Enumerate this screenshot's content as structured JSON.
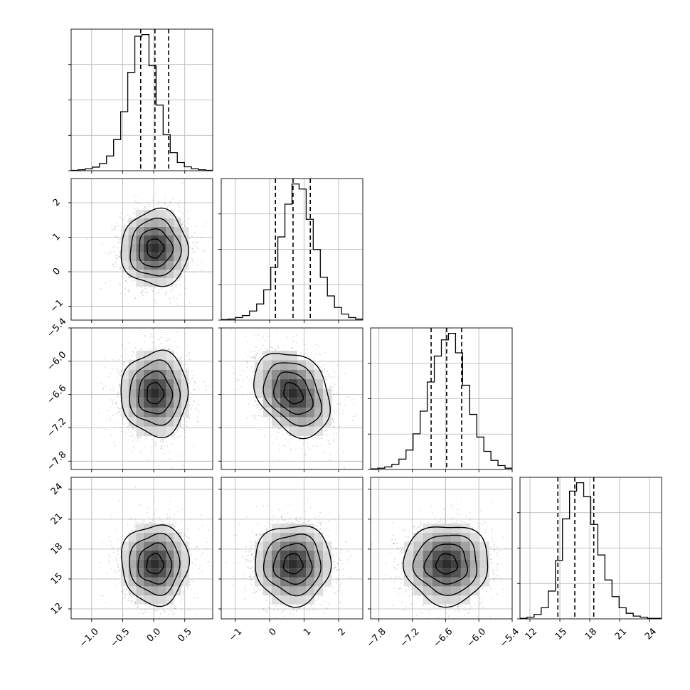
{
  "chart_data": {
    "type": "corner",
    "grid": true,
    "parameters": [
      {
        "ticks": [
          -1.0,
          -0.5,
          0.0,
          0.5
        ],
        "tick_labels": [
          "−1.0",
          "−0.5",
          "0.0",
          "0.5"
        ],
        "range": [
          -1.33,
          0.95
        ],
        "quantiles": [
          -0.21,
          0.02,
          0.24
        ],
        "hist_bins": [
          -1.33,
          0.95,
          20
        ],
        "hist_counts": [
          1,
          3,
          6,
          11,
          22,
          45,
          95,
          180,
          300,
          410,
          415,
          320,
          200,
          110,
          55,
          25,
          12,
          6,
          3,
          1
        ]
      },
      {
        "ticks": [
          -1,
          0,
          1,
          2
        ],
        "tick_labels": [
          "−1",
          "0",
          "1",
          "2"
        ],
        "tick_labels_x": [
          "−1",
          "0",
          "1",
          "2"
        ],
        "range": [
          -1.4,
          2.7
        ],
        "quantiles": [
          0.17,
          0.68,
          1.18
        ],
        "hist_bins": [
          -1.4,
          2.7,
          20
        ],
        "hist_counts": [
          1,
          2,
          5,
          9,
          18,
          32,
          60,
          105,
          165,
          230,
          270,
          260,
          200,
          140,
          85,
          48,
          25,
          12,
          5,
          2
        ]
      },
      {
        "ticks": [
          -7.8,
          -7.2,
          -6.6,
          -6.0,
          -5.4
        ],
        "tick_labels": [
          "−7.8",
          "−7.2",
          "−6.6",
          "−6.0",
          "−5.4"
        ],
        "range": [
          -7.95,
          -5.4
        ],
        "quantiles": [
          -6.86,
          -6.58,
          -6.31
        ],
        "hist_bins": [
          -7.95,
          -5.4,
          20
        ],
        "hist_counts": [
          1,
          2,
          4,
          8,
          16,
          30,
          55,
          90,
          135,
          175,
          200,
          210,
          180,
          130,
          85,
          50,
          28,
          14,
          6,
          2
        ]
      },
      {
        "ticks": [
          12,
          15,
          18,
          21,
          24
        ],
        "tick_labels": [
          "12",
          "15",
          "18",
          "21",
          "24"
        ],
        "range": [
          11.0,
          25.2
        ],
        "quantiles": [
          14.8,
          16.5,
          18.4
        ],
        "hist_bins": [
          11.0,
          25.2,
          20
        ],
        "hist_counts": [
          1,
          3,
          8,
          20,
          50,
          105,
          180,
          230,
          245,
          220,
          170,
          115,
          70,
          40,
          20,
          10,
          5,
          3,
          1,
          1
        ]
      }
    ],
    "correlations": {
      "1_0": 0.0,
      "2_0": 0.0,
      "2_1": -0.3,
      "3_0": 0.0,
      "3_1": 0.0,
      "3_2": 0.0
    },
    "cloud_sigma": [
      0.27,
      0.55,
      0.38,
      2.0
    ]
  }
}
